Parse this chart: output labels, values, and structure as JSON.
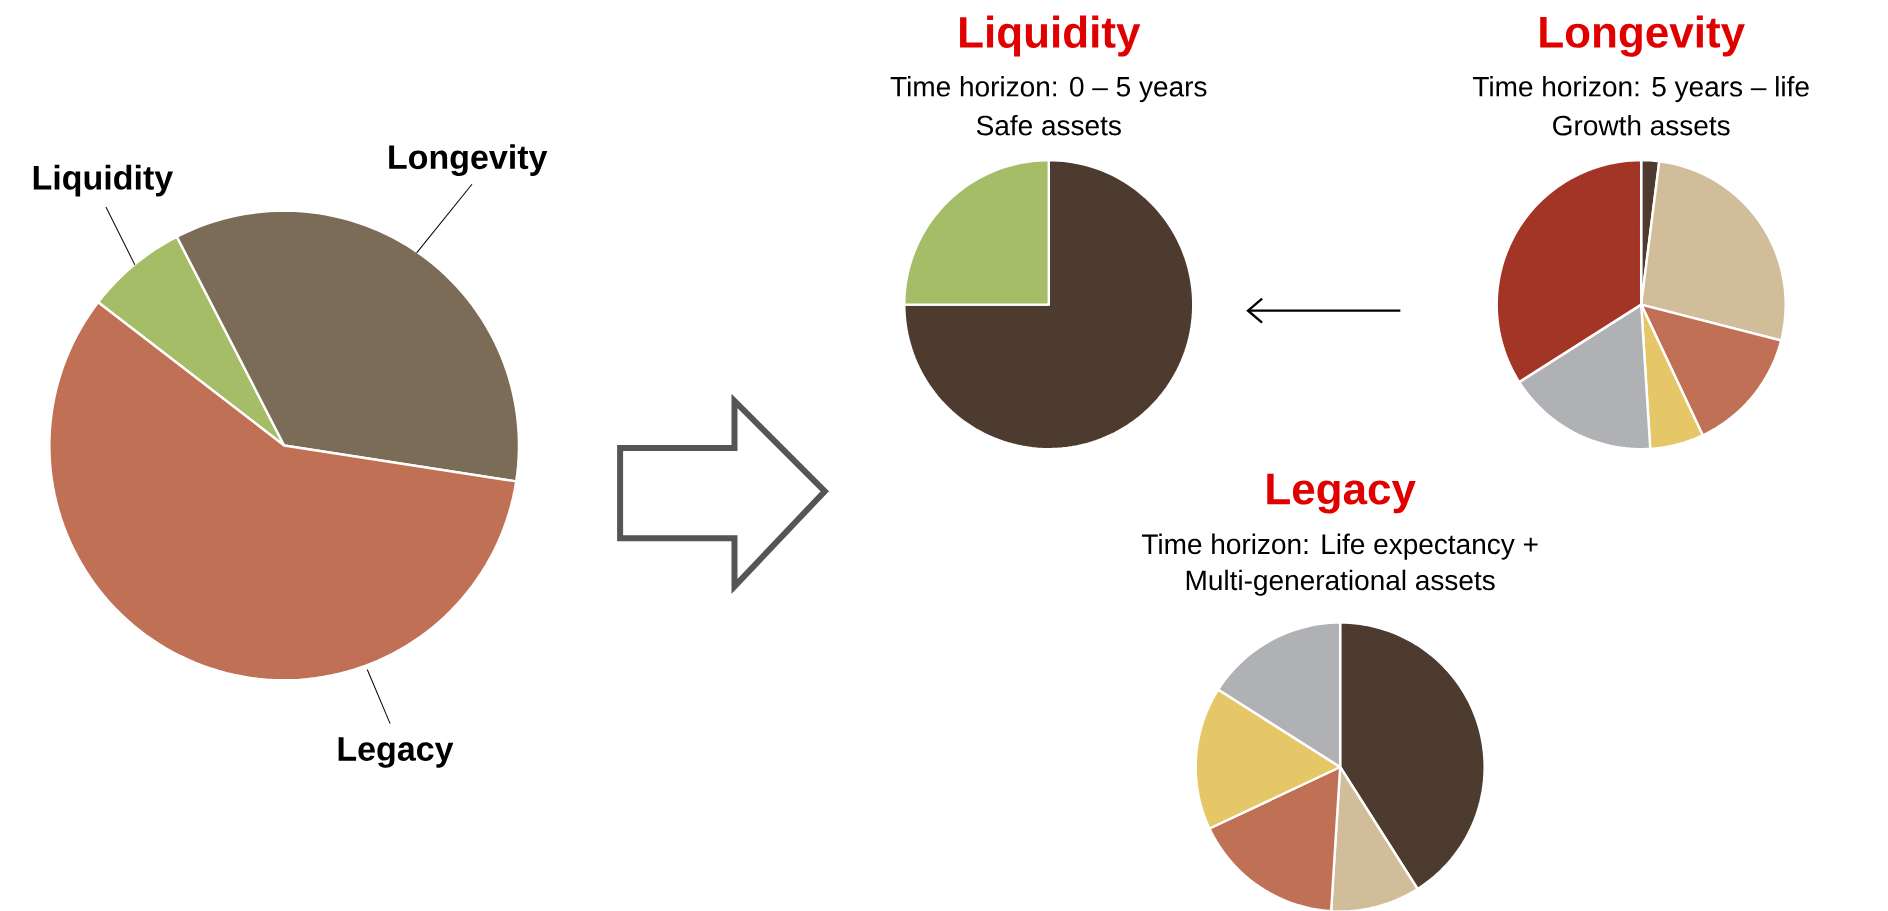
{
  "chart_data": [
    {
      "type": "pie",
      "categories": [
        "Liquidity",
        "Longevity",
        "Legacy"
      ],
      "values": [
        7,
        35,
        58
      ],
      "colors": [
        "#a6bd68",
        "#7b6c58",
        "#c07055"
      ]
    },
    {
      "type": "pie",
      "title": "Liquidity",
      "subtitle": "Time horizon: 0 – 5 years",
      "annotations": [
        "Safe assets"
      ],
      "categories": [
        null,
        null
      ],
      "values": [
        75,
        25
      ],
      "colors": [
        "#4e3b30",
        "#a6bd68"
      ]
    },
    {
      "type": "pie",
      "title": "Longevity",
      "subtitle": "Time horizon: 5 years – life",
      "annotations": [
        "Growth assets"
      ],
      "categories": [
        null,
        null,
        null,
        null,
        null,
        null
      ],
      "values": [
        2,
        27,
        14,
        6,
        17,
        34
      ],
      "colors": [
        "#4e3b30",
        "#d1bd9a",
        "#c07055",
        "#e6c767",
        "#b0b1b4",
        "#a33527"
      ]
    },
    {
      "type": "pie",
      "title": "Legacy",
      "subtitle": "Time horizon: Life expectancy +",
      "annotations": [
        "Multi-generational assets"
      ],
      "categories": [
        null,
        null,
        null,
        null,
        null
      ],
      "values": [
        41,
        10,
        17,
        16,
        16
      ],
      "colors": [
        "#4e3b30",
        "#d1bd9a",
        "#c07055",
        "#e6c767",
        "#b0b1b4"
      ]
    }
  ]
}
